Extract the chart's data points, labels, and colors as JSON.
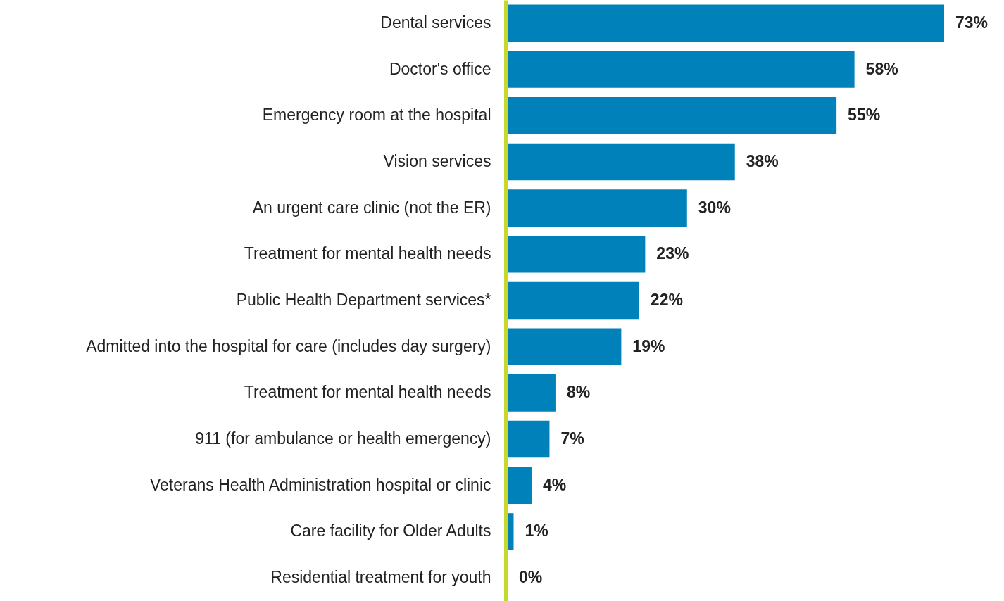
{
  "chart_data": {
    "type": "bar",
    "orientation": "horizontal",
    "color": "#0081b9",
    "categories": [
      "Dental services",
      "Doctor's office",
      "Emergency room at the hospital",
      "Vision services",
      "An urgent care clinic (not the ER)",
      "Treatment for mental health needs",
      "Public Health Department services*",
      "Admitted into the hospital for care (includes day surgery)",
      "Treatment for mental health needs",
      "911 (for ambulance or health emergency)",
      "Veterans Health Administration hospital or clinic",
      "Care facility for Older Adults",
      "Residential treatment for youth"
    ],
    "values": [
      73,
      58,
      55,
      38,
      30,
      23,
      22,
      19,
      8,
      7,
      4,
      1,
      0
    ],
    "value_labels": [
      "73%",
      "58%",
      "55%",
      "38%",
      "30%",
      "23%",
      "22%",
      "19%",
      "8%",
      "7%",
      "4%",
      "1%",
      "0%"
    ]
  }
}
